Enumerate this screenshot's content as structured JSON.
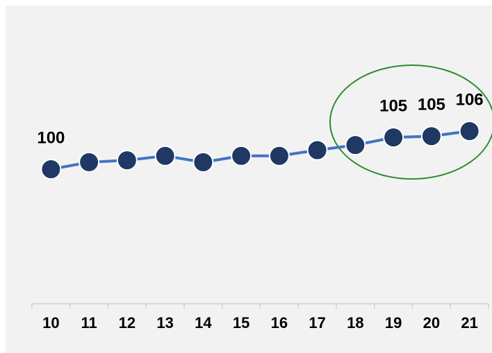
{
  "chart_data": {
    "type": "line",
    "categories": [
      "10",
      "11",
      "12",
      "13",
      "14",
      "15",
      "16",
      "17",
      "18",
      "19",
      "20",
      "21"
    ],
    "values": [
      100,
      101.1,
      101.4,
      102.1,
      101.1,
      102.1,
      102.1,
      103,
      103.8,
      105,
      105.2,
      106
    ],
    "value_labels": [
      "100",
      null,
      null,
      null,
      null,
      null,
      null,
      null,
      null,
      "105",
      "105",
      "106"
    ],
    "color": "#4472c4",
    "marker_color": "#1f3864",
    "ylim": [
      90,
      115
    ]
  }
}
